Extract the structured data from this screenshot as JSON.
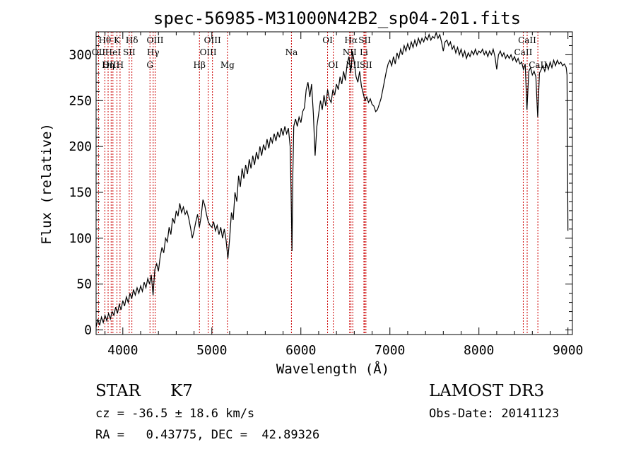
{
  "chart_data": {
    "type": "line",
    "title": "spec-56985-M31000N42B2_sp04-201.fits",
    "xlabel": "Wavelength (Å)",
    "ylabel": "Flux (relative)",
    "xlim": [
      3700,
      9050
    ],
    "ylim": [
      -5,
      325
    ],
    "x_ticks": [
      4000,
      5000,
      6000,
      7000,
      8000,
      9000
    ],
    "y_ticks": [
      0,
      50,
      100,
      150,
      200,
      250,
      300
    ],
    "series": [
      {
        "name": "flux",
        "points": [
          [
            3700,
            3
          ],
          [
            3720,
            12
          ],
          [
            3740,
            5
          ],
          [
            3760,
            14
          ],
          [
            3780,
            8
          ],
          [
            3800,
            16
          ],
          [
            3820,
            10
          ],
          [
            3840,
            18
          ],
          [
            3860,
            12
          ],
          [
            3880,
            20
          ],
          [
            3900,
            16
          ],
          [
            3920,
            25
          ],
          [
            3940,
            18
          ],
          [
            3960,
            28
          ],
          [
            3980,
            22
          ],
          [
            4000,
            32
          ],
          [
            4020,
            26
          ],
          [
            4040,
            36
          ],
          [
            4060,
            30
          ],
          [
            4080,
            40
          ],
          [
            4100,
            34
          ],
          [
            4120,
            44
          ],
          [
            4140,
            38
          ],
          [
            4160,
            46
          ],
          [
            4180,
            40
          ],
          [
            4200,
            48
          ],
          [
            4220,
            42
          ],
          [
            4240,
            52
          ],
          [
            4260,
            46
          ],
          [
            4280,
            56
          ],
          [
            4300,
            50
          ],
          [
            4320,
            60
          ],
          [
            4340,
            38
          ],
          [
            4360,
            66
          ],
          [
            4380,
            72
          ],
          [
            4400,
            64
          ],
          [
            4420,
            80
          ],
          [
            4440,
            90
          ],
          [
            4460,
            84
          ],
          [
            4480,
            100
          ],
          [
            4500,
            96
          ],
          [
            4520,
            112
          ],
          [
            4540,
            104
          ],
          [
            4560,
            122
          ],
          [
            4580,
            116
          ],
          [
            4600,
            130
          ],
          [
            4620,
            124
          ],
          [
            4640,
            138
          ],
          [
            4660,
            128
          ],
          [
            4680,
            134
          ],
          [
            4700,
            126
          ],
          [
            4720,
            130
          ],
          [
            4740,
            122
          ],
          [
            4760,
            112
          ],
          [
            4780,
            100
          ],
          [
            4800,
            108
          ],
          [
            4820,
            118
          ],
          [
            4840,
            126
          ],
          [
            4860,
            112
          ],
          [
            4880,
            124
          ],
          [
            4900,
            142
          ],
          [
            4920,
            136
          ],
          [
            4940,
            126
          ],
          [
            4960,
            118
          ],
          [
            4980,
            114
          ],
          [
            5000,
            112
          ],
          [
            5020,
            118
          ],
          [
            5040,
            108
          ],
          [
            5060,
            114
          ],
          [
            5080,
            104
          ],
          [
            5100,
            112
          ],
          [
            5120,
            100
          ],
          [
            5140,
            110
          ],
          [
            5160,
            98
          ],
          [
            5180,
            78
          ],
          [
            5200,
            100
          ],
          [
            5220,
            128
          ],
          [
            5240,
            120
          ],
          [
            5260,
            150
          ],
          [
            5280,
            140
          ],
          [
            5300,
            168
          ],
          [
            5320,
            156
          ],
          [
            5340,
            176
          ],
          [
            5360,
            165
          ],
          [
            5380,
            180
          ],
          [
            5400,
            170
          ],
          [
            5420,
            186
          ],
          [
            5440,
            176
          ],
          [
            5460,
            190
          ],
          [
            5480,
            180
          ],
          [
            5500,
            194
          ],
          [
            5520,
            186
          ],
          [
            5540,
            200
          ],
          [
            5560,
            190
          ],
          [
            5580,
            202
          ],
          [
            5600,
            196
          ],
          [
            5620,
            208
          ],
          [
            5640,
            198
          ],
          [
            5660,
            210
          ],
          [
            5680,
            204
          ],
          [
            5700,
            214
          ],
          [
            5720,
            206
          ],
          [
            5740,
            216
          ],
          [
            5760,
            210
          ],
          [
            5780,
            220
          ],
          [
            5800,
            212
          ],
          [
            5820,
            222
          ],
          [
            5840,
            214
          ],
          [
            5860,
            220
          ],
          [
            5880,
            200
          ],
          [
            5890,
            150
          ],
          [
            5900,
            86
          ],
          [
            5910,
            170
          ],
          [
            5920,
            222
          ],
          [
            5940,
            230
          ],
          [
            5960,
            222
          ],
          [
            5980,
            232
          ],
          [
            6000,
            226
          ],
          [
            6020,
            238
          ],
          [
            6040,
            242
          ],
          [
            6060,
            262
          ],
          [
            6080,
            270
          ],
          [
            6100,
            254
          ],
          [
            6120,
            268
          ],
          [
            6140,
            236
          ],
          [
            6160,
            190
          ],
          [
            6180,
            222
          ],
          [
            6200,
            236
          ],
          [
            6220,
            250
          ],
          [
            6240,
            240
          ],
          [
            6260,
            256
          ],
          [
            6280,
            244
          ],
          [
            6300,
            262
          ],
          [
            6320,
            252
          ],
          [
            6340,
            248
          ],
          [
            6360,
            262
          ],
          [
            6380,
            256
          ],
          [
            6400,
            268
          ],
          [
            6420,
            262
          ],
          [
            6440,
            276
          ],
          [
            6460,
            268
          ],
          [
            6480,
            282
          ],
          [
            6500,
            272
          ],
          [
            6520,
            290
          ],
          [
            6540,
            298
          ],
          [
            6560,
            280
          ],
          [
            6580,
            304
          ],
          [
            6600,
            292
          ],
          [
            6620,
            276
          ],
          [
            6640,
            270
          ],
          [
            6660,
            282
          ],
          [
            6680,
            266
          ],
          [
            6700,
            258
          ],
          [
            6720,
            250
          ],
          [
            6740,
            254
          ],
          [
            6760,
            248
          ],
          [
            6780,
            252
          ],
          [
            6800,
            246
          ],
          [
            6820,
            244
          ],
          [
            6840,
            238
          ],
          [
            6860,
            240
          ],
          [
            6880,
            246
          ],
          [
            6900,
            252
          ],
          [
            6920,
            262
          ],
          [
            6940,
            272
          ],
          [
            6960,
            282
          ],
          [
            6980,
            290
          ],
          [
            7000,
            294
          ],
          [
            7020,
            288
          ],
          [
            7040,
            298
          ],
          [
            7060,
            290
          ],
          [
            7080,
            302
          ],
          [
            7100,
            296
          ],
          [
            7120,
            306
          ],
          [
            7140,
            300
          ],
          [
            7160,
            310
          ],
          [
            7180,
            304
          ],
          [
            7200,
            312
          ],
          [
            7220,
            306
          ],
          [
            7240,
            314
          ],
          [
            7260,
            308
          ],
          [
            7280,
            316
          ],
          [
            7300,
            310
          ],
          [
            7320,
            318
          ],
          [
            7340,
            312
          ],
          [
            7360,
            318
          ],
          [
            7380,
            314
          ],
          [
            7400,
            320
          ],
          [
            7420,
            316
          ],
          [
            7440,
            322
          ],
          [
            7460,
            316
          ],
          [
            7480,
            320
          ],
          [
            7500,
            318
          ],
          [
            7520,
            324
          ],
          [
            7540,
            318
          ],
          [
            7560,
            322
          ],
          [
            7580,
            314
          ],
          [
            7600,
            304
          ],
          [
            7620,
            314
          ],
          [
            7640,
            316
          ],
          [
            7660,
            310
          ],
          [
            7680,
            314
          ],
          [
            7700,
            306
          ],
          [
            7720,
            310
          ],
          [
            7740,
            302
          ],
          [
            7760,
            308
          ],
          [
            7780,
            300
          ],
          [
            7800,
            306
          ],
          [
            7820,
            298
          ],
          [
            7840,
            304
          ],
          [
            7860,
            296
          ],
          [
            7880,
            302
          ],
          [
            7900,
            298
          ],
          [
            7920,
            304
          ],
          [
            7940,
            300
          ],
          [
            7960,
            306
          ],
          [
            7980,
            300
          ],
          [
            8000,
            304
          ],
          [
            8020,
            302
          ],
          [
            8040,
            306
          ],
          [
            8060,
            300
          ],
          [
            8080,
            304
          ],
          [
            8100,
            298
          ],
          [
            8120,
            304
          ],
          [
            8140,
            300
          ],
          [
            8160,
            306
          ],
          [
            8180,
            298
          ],
          [
            8200,
            284
          ],
          [
            8220,
            300
          ],
          [
            8240,
            304
          ],
          [
            8260,
            298
          ],
          [
            8280,
            302
          ],
          [
            8300,
            296
          ],
          [
            8320,
            300
          ],
          [
            8340,
            296
          ],
          [
            8360,
            300
          ],
          [
            8380,
            294
          ],
          [
            8400,
            298
          ],
          [
            8420,
            292
          ],
          [
            8440,
            296
          ],
          [
            8460,
            290
          ],
          [
            8480,
            292
          ],
          [
            8500,
            284
          ],
          [
            8520,
            290
          ],
          [
            8540,
            240
          ],
          [
            8560,
            282
          ],
          [
            8580,
            286
          ],
          [
            8600,
            278
          ],
          [
            8620,
            282
          ],
          [
            8640,
            276
          ],
          [
            8660,
            232
          ],
          [
            8680,
            280
          ],
          [
            8700,
            284
          ],
          [
            8720,
            288
          ],
          [
            8740,
            282
          ],
          [
            8760,
            290
          ],
          [
            8780,
            284
          ],
          [
            8800,
            292
          ],
          [
            8820,
            286
          ],
          [
            8840,
            294
          ],
          [
            8860,
            288
          ],
          [
            8880,
            294
          ],
          [
            8900,
            290
          ],
          [
            8920,
            292
          ],
          [
            8940,
            288
          ],
          [
            8960,
            290
          ],
          [
            8980,
            286
          ],
          [
            8990,
            278
          ],
          [
            9000,
            108
          ]
        ]
      }
    ],
    "emission_lines": [
      {
        "label": "Hθ",
        "x": 3798,
        "row": 1
      },
      {
        "label": "OII",
        "x": 3727,
        "row": 2
      },
      {
        "label": "OIII",
        "x": 3869,
        "row": 3
      },
      {
        "label": "K",
        "x": 3934,
        "row": 1
      },
      {
        "label": "HeI",
        "x": 3889,
        "row": 2
      },
      {
        "label": "Hη",
        "x": 3835,
        "row": 3
      },
      {
        "label": "H",
        "x": 3969,
        "row": 3
      },
      {
        "label": "SII",
        "x": 4072,
        "row": 2
      },
      {
        "label": "Hδ",
        "x": 4102,
        "row": 1
      },
      {
        "label": "OIII",
        "x": 4363,
        "row": 1
      },
      {
        "label": "Hγ",
        "x": 4341,
        "row": 2
      },
      {
        "label": "G",
        "x": 4305,
        "row": 3
      },
      {
        "label": "Hβ",
        "x": 4861,
        "row": 3
      },
      {
        "label": "OIII",
        "x": 5007,
        "row": 1
      },
      {
        "label": "OIII",
        "x": 4959,
        "row": 2
      },
      {
        "label": "Mg",
        "x": 5175,
        "row": 3
      },
      {
        "label": "Na",
        "x": 5894,
        "row": 2
      },
      {
        "label": "OI",
        "x": 6300,
        "row": 1
      },
      {
        "label": "OI",
        "x": 6364,
        "row": 3
      },
      {
        "label": "Hα",
        "x": 6563,
        "row": 1
      },
      {
        "label": "NII",
        "x": 6548,
        "row": 2
      },
      {
        "label": "NII",
        "x": 6583,
        "row": 3
      },
      {
        "label": "SII",
        "x": 6717,
        "row": 1
      },
      {
        "label": "Li",
        "x": 6708,
        "row": 2
      },
      {
        "label": "SII",
        "x": 6731,
        "row": 3
      },
      {
        "label": "CaII",
        "x": 8542,
        "row": 1
      },
      {
        "label": "CaII",
        "x": 8498,
        "row": 2
      },
      {
        "label": "CaII",
        "x": 8662,
        "row": 3
      }
    ]
  },
  "info": {
    "class_label": "STAR",
    "subclass": "K7",
    "survey": "LAMOST DR3",
    "cz": "cz = -36.5 ± 18.6 km/s",
    "obs_date": "Obs-Date: 20141123",
    "radec": "RA =   0.43775, DEC =  42.89326"
  },
  "colors": {
    "line": "#000000",
    "marker": "#cc0000",
    "background": "#ffffff"
  }
}
